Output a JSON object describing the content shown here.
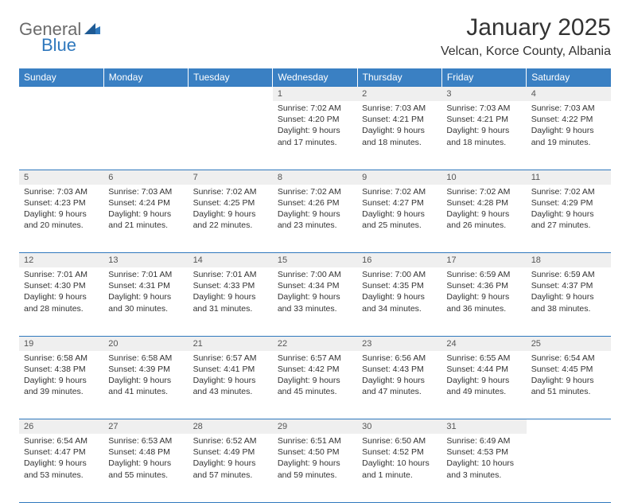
{
  "logo": {
    "general": "General",
    "blue": "Blue"
  },
  "title": "January 2025",
  "location": "Velcan, Korce County, Albania",
  "colors": {
    "header_bg": "#3a80c3",
    "header_text": "#ffffff",
    "rule": "#2f78bd",
    "daynum_bg": "#efefef",
    "body_text": "#333333"
  },
  "weekdays": [
    "Sunday",
    "Monday",
    "Tuesday",
    "Wednesday",
    "Thursday",
    "Friday",
    "Saturday"
  ],
  "weeks": [
    {
      "nums": [
        "",
        "",
        "",
        "1",
        "2",
        "3",
        "4"
      ],
      "cells": [
        null,
        null,
        null,
        {
          "sunrise": "Sunrise: 7:02 AM",
          "sunset": "Sunset: 4:20 PM",
          "d1": "Daylight: 9 hours",
          "d2": "and 17 minutes."
        },
        {
          "sunrise": "Sunrise: 7:03 AM",
          "sunset": "Sunset: 4:21 PM",
          "d1": "Daylight: 9 hours",
          "d2": "and 18 minutes."
        },
        {
          "sunrise": "Sunrise: 7:03 AM",
          "sunset": "Sunset: 4:21 PM",
          "d1": "Daylight: 9 hours",
          "d2": "and 18 minutes."
        },
        {
          "sunrise": "Sunrise: 7:03 AM",
          "sunset": "Sunset: 4:22 PM",
          "d1": "Daylight: 9 hours",
          "d2": "and 19 minutes."
        }
      ]
    },
    {
      "nums": [
        "5",
        "6",
        "7",
        "8",
        "9",
        "10",
        "11"
      ],
      "cells": [
        {
          "sunrise": "Sunrise: 7:03 AM",
          "sunset": "Sunset: 4:23 PM",
          "d1": "Daylight: 9 hours",
          "d2": "and 20 minutes."
        },
        {
          "sunrise": "Sunrise: 7:03 AM",
          "sunset": "Sunset: 4:24 PM",
          "d1": "Daylight: 9 hours",
          "d2": "and 21 minutes."
        },
        {
          "sunrise": "Sunrise: 7:02 AM",
          "sunset": "Sunset: 4:25 PM",
          "d1": "Daylight: 9 hours",
          "d2": "and 22 minutes."
        },
        {
          "sunrise": "Sunrise: 7:02 AM",
          "sunset": "Sunset: 4:26 PM",
          "d1": "Daylight: 9 hours",
          "d2": "and 23 minutes."
        },
        {
          "sunrise": "Sunrise: 7:02 AM",
          "sunset": "Sunset: 4:27 PM",
          "d1": "Daylight: 9 hours",
          "d2": "and 25 minutes."
        },
        {
          "sunrise": "Sunrise: 7:02 AM",
          "sunset": "Sunset: 4:28 PM",
          "d1": "Daylight: 9 hours",
          "d2": "and 26 minutes."
        },
        {
          "sunrise": "Sunrise: 7:02 AM",
          "sunset": "Sunset: 4:29 PM",
          "d1": "Daylight: 9 hours",
          "d2": "and 27 minutes."
        }
      ]
    },
    {
      "nums": [
        "12",
        "13",
        "14",
        "15",
        "16",
        "17",
        "18"
      ],
      "cells": [
        {
          "sunrise": "Sunrise: 7:01 AM",
          "sunset": "Sunset: 4:30 PM",
          "d1": "Daylight: 9 hours",
          "d2": "and 28 minutes."
        },
        {
          "sunrise": "Sunrise: 7:01 AM",
          "sunset": "Sunset: 4:31 PM",
          "d1": "Daylight: 9 hours",
          "d2": "and 30 minutes."
        },
        {
          "sunrise": "Sunrise: 7:01 AM",
          "sunset": "Sunset: 4:33 PM",
          "d1": "Daylight: 9 hours",
          "d2": "and 31 minutes."
        },
        {
          "sunrise": "Sunrise: 7:00 AM",
          "sunset": "Sunset: 4:34 PM",
          "d1": "Daylight: 9 hours",
          "d2": "and 33 minutes."
        },
        {
          "sunrise": "Sunrise: 7:00 AM",
          "sunset": "Sunset: 4:35 PM",
          "d1": "Daylight: 9 hours",
          "d2": "and 34 minutes."
        },
        {
          "sunrise": "Sunrise: 6:59 AM",
          "sunset": "Sunset: 4:36 PM",
          "d1": "Daylight: 9 hours",
          "d2": "and 36 minutes."
        },
        {
          "sunrise": "Sunrise: 6:59 AM",
          "sunset": "Sunset: 4:37 PM",
          "d1": "Daylight: 9 hours",
          "d2": "and 38 minutes."
        }
      ]
    },
    {
      "nums": [
        "19",
        "20",
        "21",
        "22",
        "23",
        "24",
        "25"
      ],
      "cells": [
        {
          "sunrise": "Sunrise: 6:58 AM",
          "sunset": "Sunset: 4:38 PM",
          "d1": "Daylight: 9 hours",
          "d2": "and 39 minutes."
        },
        {
          "sunrise": "Sunrise: 6:58 AM",
          "sunset": "Sunset: 4:39 PM",
          "d1": "Daylight: 9 hours",
          "d2": "and 41 minutes."
        },
        {
          "sunrise": "Sunrise: 6:57 AM",
          "sunset": "Sunset: 4:41 PM",
          "d1": "Daylight: 9 hours",
          "d2": "and 43 minutes."
        },
        {
          "sunrise": "Sunrise: 6:57 AM",
          "sunset": "Sunset: 4:42 PM",
          "d1": "Daylight: 9 hours",
          "d2": "and 45 minutes."
        },
        {
          "sunrise": "Sunrise: 6:56 AM",
          "sunset": "Sunset: 4:43 PM",
          "d1": "Daylight: 9 hours",
          "d2": "and 47 minutes."
        },
        {
          "sunrise": "Sunrise: 6:55 AM",
          "sunset": "Sunset: 4:44 PM",
          "d1": "Daylight: 9 hours",
          "d2": "and 49 minutes."
        },
        {
          "sunrise": "Sunrise: 6:54 AM",
          "sunset": "Sunset: 4:45 PM",
          "d1": "Daylight: 9 hours",
          "d2": "and 51 minutes."
        }
      ]
    },
    {
      "nums": [
        "26",
        "27",
        "28",
        "29",
        "30",
        "31",
        ""
      ],
      "cells": [
        {
          "sunrise": "Sunrise: 6:54 AM",
          "sunset": "Sunset: 4:47 PM",
          "d1": "Daylight: 9 hours",
          "d2": "and 53 minutes."
        },
        {
          "sunrise": "Sunrise: 6:53 AM",
          "sunset": "Sunset: 4:48 PM",
          "d1": "Daylight: 9 hours",
          "d2": "and 55 minutes."
        },
        {
          "sunrise": "Sunrise: 6:52 AM",
          "sunset": "Sunset: 4:49 PM",
          "d1": "Daylight: 9 hours",
          "d2": "and 57 minutes."
        },
        {
          "sunrise": "Sunrise: 6:51 AM",
          "sunset": "Sunset: 4:50 PM",
          "d1": "Daylight: 9 hours",
          "d2": "and 59 minutes."
        },
        {
          "sunrise": "Sunrise: 6:50 AM",
          "sunset": "Sunset: 4:52 PM",
          "d1": "Daylight: 10 hours",
          "d2": "and 1 minute."
        },
        {
          "sunrise": "Sunrise: 6:49 AM",
          "sunset": "Sunset: 4:53 PM",
          "d1": "Daylight: 10 hours",
          "d2": "and 3 minutes."
        },
        null
      ]
    }
  ]
}
